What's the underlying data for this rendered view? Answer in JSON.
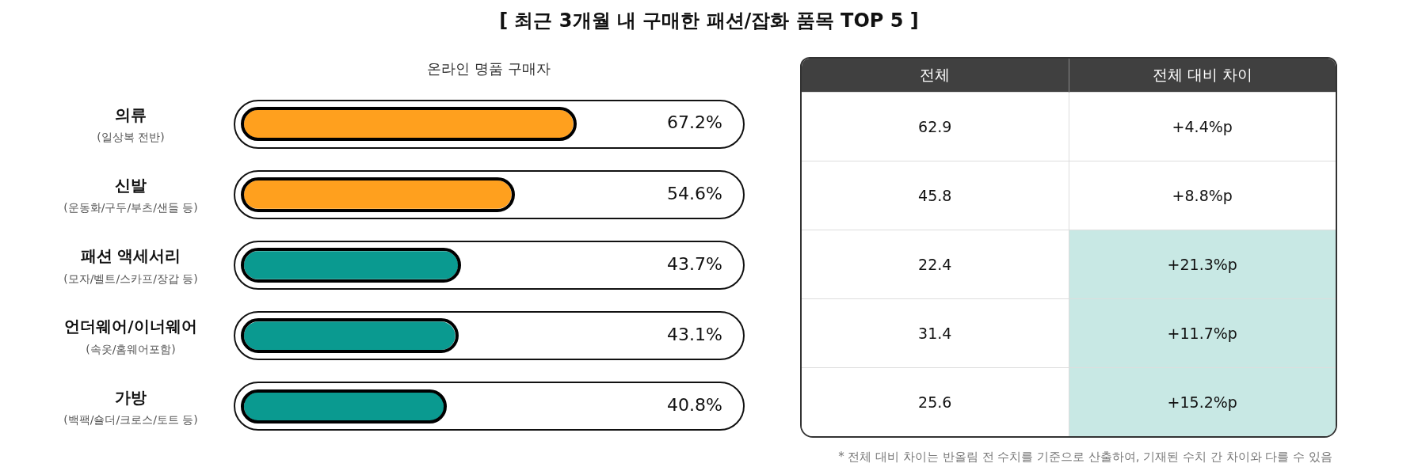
{
  "chart_data": [
    {
      "type": "bar",
      "orientation": "horizontal",
      "title": "[ 최근 3개월 내 구매한 패션/잡화 품목 TOP 5 ]",
      "subtitle": "온라인 명품 구매자",
      "categories": [
        "의류\n(일상복 전반)",
        "신발\n(운동화/구두/부츠/샌들 등)",
        "패션 액세서리\n(모자/벨트/스카프/장갑 등)",
        "언더웨어/이너웨어\n(속옷/홈웨어포함)",
        "가방\n(백팩/숄더/크로스/토트 등)"
      ],
      "values": [
        67.2,
        54.6,
        43.7,
        43.1,
        40.8
      ],
      "colors": [
        "#ffa01e",
        "#ffa01e",
        "#0a9a90",
        "#0a9a90",
        "#0a9a90"
      ],
      "value_labels": [
        "67.2%",
        "54.6%",
        "43.7%",
        "43.1%",
        "40.8%"
      ]
    },
    {
      "type": "other",
      "categories": [
        "전체",
        "전체 대비 차이"
      ],
      "annotations": [
        "62.9",
        "+4.4%p",
        "45.8",
        "+8.8%p",
        "22.4",
        "+21.3%p",
        "31.4",
        "+11.7%p",
        "25.6",
        "+15.2%p",
        "* 전체 대비 차이는 반올림 전 수치를 기준으로 산출하여, 기재된 수치 간 차이와 다를 수 있음"
      ],
      "colors": [
        [
          "#ffffff",
          "#ffffff"
        ],
        [
          "#ffffff",
          "#ffffff"
        ],
        [
          "#ffffff",
          "#c8e8e4"
        ],
        [
          "#ffffff",
          "#c8e8e4"
        ],
        [
          "#ffffff",
          "#c8e8e4"
        ]
      ]
    }
  ]
}
